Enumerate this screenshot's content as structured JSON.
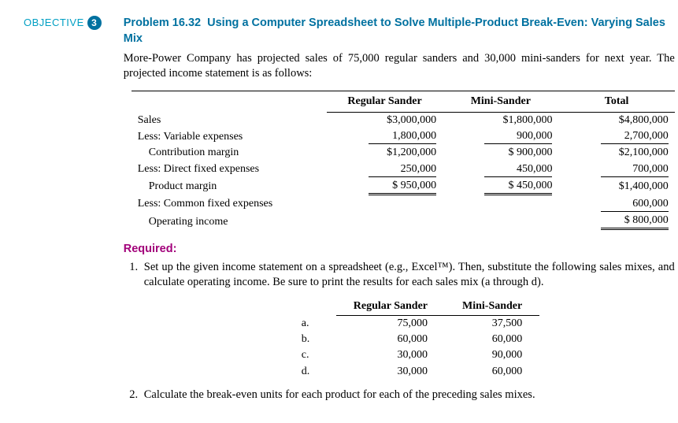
{
  "objective": {
    "label": "OBJECTIVE",
    "num": "3"
  },
  "problem": {
    "code": "Problem 16.32",
    "title_rest": "Using a Computer Spreadsheet to Solve Multiple-Product Break-Even: Varying Sales Mix",
    "intro": "More-Power Company has projected sales of 75,000 regular sanders and 30,000 mini-sanders for next year. The projected income statement is as follows:"
  },
  "income": {
    "headers": [
      "Regular Sander",
      "Mini-Sander",
      "Total"
    ],
    "rows": [
      {
        "label": "Sales",
        "indent": 0,
        "reg": "$3,000,000",
        "mini": "$1,800,000",
        "tot": "$4,800,000"
      },
      {
        "label": "Less: Variable expenses",
        "indent": 0,
        "reg": "1,800,000",
        "mini": "900,000",
        "tot": "2,700,000",
        "ul": true
      },
      {
        "label": "Contribution margin",
        "indent": 1,
        "reg": "$1,200,000",
        "mini": "$   900,000",
        "tot": "$2,100,000"
      },
      {
        "label": "Less: Direct fixed expenses",
        "indent": 0,
        "reg": "250,000",
        "mini": "450,000",
        "tot": "700,000",
        "ul": true
      },
      {
        "label": "Product margin",
        "indent": 1,
        "reg": "$   950,000",
        "mini": "$   450,000",
        "tot": "$1,400,000",
        "dbl_rm": true
      },
      {
        "label": "Less: Common fixed expenses",
        "indent": 0,
        "reg": "",
        "mini": "",
        "tot": "600,000",
        "ul_tot": true
      },
      {
        "label": "Operating income",
        "indent": 1,
        "reg": "",
        "mini": "",
        "tot": "$   800,000",
        "dbl_tot": true
      }
    ]
  },
  "required_label": "Required:",
  "req1": "Set up the given income statement on a spreadsheet (e.g., Excel™). Then, substitute the following sales mixes, and calculate operating income. Be sure to print the results for each sales mix (a through d).",
  "req2": "Calculate the break-even units for each product for each of the preceding sales mixes.",
  "mix": {
    "headers": [
      "Regular Sander",
      "Mini-Sander"
    ],
    "rows": [
      {
        "l": "a.",
        "r": "75,000",
        "m": "37,500"
      },
      {
        "l": "b.",
        "r": "60,000",
        "m": "60,000"
      },
      {
        "l": "c.",
        "r": "30,000",
        "m": "90,000"
      },
      {
        "l": "d.",
        "r": "30,000",
        "m": "60,000"
      }
    ]
  }
}
